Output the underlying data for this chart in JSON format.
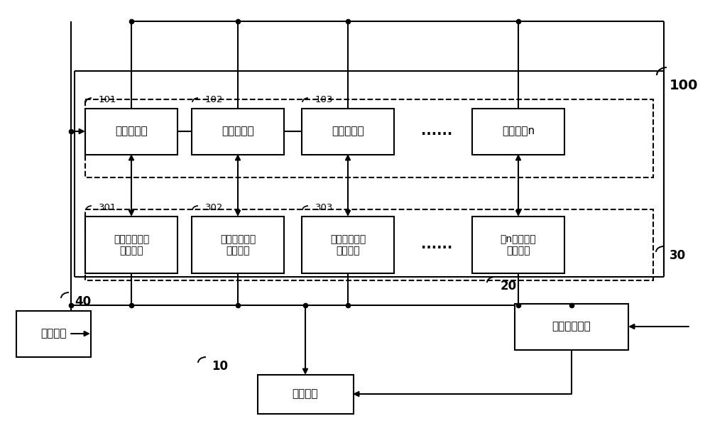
{
  "bg": "#ffffff",
  "lc": "#000000",
  "cells": [
    "单体电池１",
    "单体电池２",
    "单体电池３",
    "单体电池n"
  ],
  "cell_tags": [
    "101",
    "102",
    "103",
    ""
  ],
  "convs": [
    "第一双向直流\n转换单元",
    "第二双向直流\n转换单元",
    "第三双向直流\n转换单元",
    "第n双向直流\n转换单元"
  ],
  "conv_tags": [
    "301",
    "302",
    "303",
    ""
  ],
  "power": "电源模块",
  "main": "主控模块",
  "info": "信息采集模块",
  "label_100": "100",
  "label_30": "30",
  "label_40": "40",
  "label_10": "10",
  "label_20": "20",
  "ellipsis": "......",
  "figw": 10.0,
  "figh": 6.17,
  "dpi": 100
}
